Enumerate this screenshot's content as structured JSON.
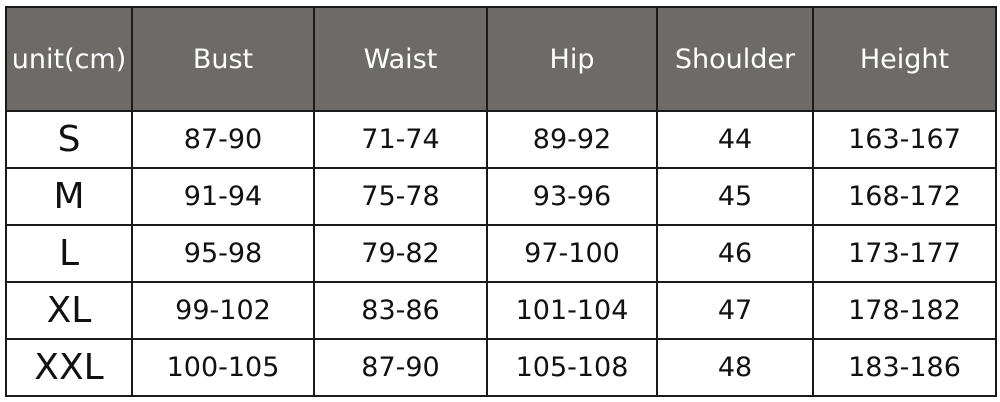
{
  "table": {
    "headers": [
      "unit(cm)",
      "Bust",
      "Waist",
      "Hip",
      "Shoulder",
      "Height"
    ],
    "rows": [
      [
        "S",
        "87-90",
        "71-74",
        "89-92",
        "44",
        "163-167"
      ],
      [
        "M",
        "91-94",
        "75-78",
        "93-96",
        "45",
        "168-172"
      ],
      [
        "L",
        "95-98",
        "79-82",
        "97-100",
        "46",
        "173-177"
      ],
      [
        "XL",
        "99-102",
        "83-86",
        "101-104",
        "47",
        "178-182"
      ],
      [
        "XXL",
        "100-105",
        "87-90",
        "105-108",
        "48",
        "183-186"
      ]
    ],
    "header_color": "#6e6a68"
  }
}
